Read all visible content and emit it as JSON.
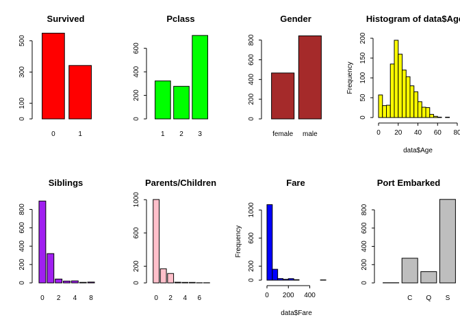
{
  "chart_data": [
    {
      "type": "bar",
      "title": "Survived",
      "categories": [
        "0",
        "1"
      ],
      "values": [
        549,
        342
      ],
      "color": "#ff0000",
      "ylim": [
        0,
        560
      ],
      "yticks": [
        0,
        100,
        300,
        500
      ],
      "xlabel": "",
      "ylabel": ""
    },
    {
      "type": "bar",
      "title": "Pclass",
      "categories": [
        "1",
        "2",
        "3"
      ],
      "values": [
        323,
        277,
        709
      ],
      "color": "#00ff00",
      "ylim": [
        0,
        720
      ],
      "yticks": [
        0,
        200,
        400,
        600
      ],
      "xlabel": "",
      "ylabel": ""
    },
    {
      "type": "bar",
      "title": "Gender",
      "categories": [
        "female",
        "male"
      ],
      "values": [
        466,
        843
      ],
      "color": "#a52a2a",
      "ylim": [
        0,
        860
      ],
      "yticks": [
        0,
        200,
        400,
        600,
        800
      ],
      "xlabel": "",
      "ylabel": ""
    },
    {
      "type": "histogram",
      "title": "Histogram of data$Age",
      "bin_width": 4,
      "bin_start": 0,
      "values": [
        57,
        30,
        31,
        135,
        195,
        160,
        120,
        103,
        80,
        65,
        40,
        26,
        25,
        8,
        3,
        1,
        0,
        1,
        0
      ],
      "color": "#ffff00",
      "xlim": [
        0,
        80
      ],
      "xticks": [
        0,
        20,
        40,
        60,
        80
      ],
      "ylim": [
        0,
        200
      ],
      "yticks": [
        0,
        50,
        100,
        150,
        200
      ],
      "xlabel": "data$Age",
      "ylabel": "Frequency"
    },
    {
      "type": "bar",
      "title": "Siblings",
      "categories": [
        "0",
        "1",
        "2",
        "3",
        "4",
        "5",
        "8"
      ],
      "values": [
        891,
        319,
        42,
        20,
        22,
        6,
        9
      ],
      "color": "#a020f0",
      "ylim": [
        0,
        900
      ],
      "yticks": [
        0,
        200,
        400,
        600,
        800
      ],
      "tick_labels": {
        "0": "0",
        "2": "2",
        "4": "4",
        "6": "8"
      },
      "xlabel": "",
      "ylabel": ""
    },
    {
      "type": "bar",
      "title": "Parents/Children",
      "categories": [
        "0",
        "1",
        "2",
        "3",
        "4",
        "5",
        "6",
        "9"
      ],
      "values": [
        1002,
        170,
        113,
        8,
        6,
        6,
        2,
        2
      ],
      "color": "#ffc0cb",
      "ylim": [
        0,
        1010
      ],
      "yticks": [
        0,
        200,
        600,
        1000
      ],
      "tick_labels": {
        "0": "0",
        "2": "2",
        "4": "4",
        "6": "6"
      },
      "xlabel": "",
      "ylabel": ""
    },
    {
      "type": "histogram",
      "title": "Fare",
      "bin_width": 50,
      "bin_start": 0,
      "values": [
        1076,
        155,
        23,
        12,
        22,
        7,
        0,
        0,
        0,
        0,
        4
      ],
      "color": "#0000ff",
      "xlim": [
        0,
        550
      ],
      "xticks": [
        0,
        200,
        400
      ],
      "ylim": [
        0,
        1100
      ],
      "yticks": [
        0,
        200,
        600,
        1000
      ],
      "xlabel": "data$Fare",
      "ylabel": "Frequency"
    },
    {
      "type": "bar",
      "title": "Port Embarked",
      "categories": [
        "",
        "C",
        "Q",
        "S"
      ],
      "values": [
        2,
        270,
        123,
        914
      ],
      "color": "#bebebe",
      "ylim": [
        0,
        920
      ],
      "yticks": [
        0,
        200,
        400,
        600,
        800
      ],
      "xlabel": "",
      "ylabel": ""
    }
  ]
}
